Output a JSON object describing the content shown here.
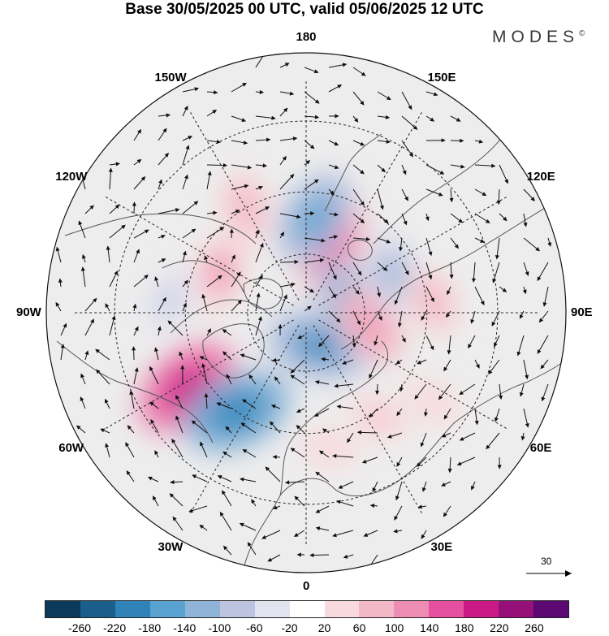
{
  "header": {
    "title": "Base 30/05/2025 00 UTC, valid 05/06/2025 12 UTC",
    "brand": "MODES",
    "brand_mark": "©"
  },
  "map": {
    "projection": "north-polar-stereographic",
    "meridian_labels": [
      {
        "text": "180",
        "lon": 180
      },
      {
        "text": "150E",
        "lon": 150
      },
      {
        "text": "120E",
        "lon": 120
      },
      {
        "text": "90E",
        "lon": 90
      },
      {
        "text": "60E",
        "lon": 60
      },
      {
        "text": "30E",
        "lon": 30
      },
      {
        "text": "0",
        "lon": 0
      },
      {
        "text": "30W",
        "lon": -30
      },
      {
        "text": "60W",
        "lon": -60
      },
      {
        "text": "90W",
        "lon": -90
      },
      {
        "text": "120W",
        "lon": -120
      },
      {
        "text": "150W",
        "lon": -150
      }
    ],
    "latitude_circles": [
      30,
      50,
      70
    ],
    "reference_vector": {
      "value": "30",
      "icon": "arrow-right-icon"
    },
    "anomalies": [
      {
        "lon": -58,
        "lat": 44,
        "value": 200
      },
      {
        "lon": -35,
        "lat": 50,
        "value": -200
      },
      {
        "lon": 20,
        "lat": 78,
        "value": -180
      },
      {
        "lon": 160,
        "lat": 65,
        "value": 160
      },
      {
        "lon": 175,
        "lat": 58,
        "value": -160
      },
      {
        "lon": 100,
        "lat": 75,
        "value": -140
      },
      {
        "lon": 80,
        "lat": 68,
        "value": 120
      },
      {
        "lon": 115,
        "lat": 58,
        "value": -100
      },
      {
        "lon": 95,
        "lat": 48,
        "value": 80
      },
      {
        "lon": -150,
        "lat": 50,
        "value": 90
      },
      {
        "lon": -115,
        "lat": 58,
        "value": 100
      },
      {
        "lon": -95,
        "lat": 45,
        "value": -70
      },
      {
        "lon": 35,
        "lat": 48,
        "value": 60
      },
      {
        "lon": 10,
        "lat": 45,
        "value": 50
      },
      {
        "lon": 55,
        "lat": 40,
        "value": 50
      }
    ]
  },
  "colorbar": {
    "colors": [
      "#0c3a5c",
      "#1a5e8c",
      "#2f83b8",
      "#5aa2cf",
      "#8fb4d8",
      "#bcc4e0",
      "#e3e2ef",
      "#ffffff",
      "#f8dade",
      "#f3b8c6",
      "#ee8db3",
      "#e5509f",
      "#c91a86",
      "#951079",
      "#5b0872"
    ],
    "ticks": [
      "-260",
      "-220",
      "-180",
      "-140",
      "-100",
      "-60",
      "-20",
      "20",
      "60",
      "100",
      "140",
      "180",
      "220",
      "260"
    ]
  }
}
